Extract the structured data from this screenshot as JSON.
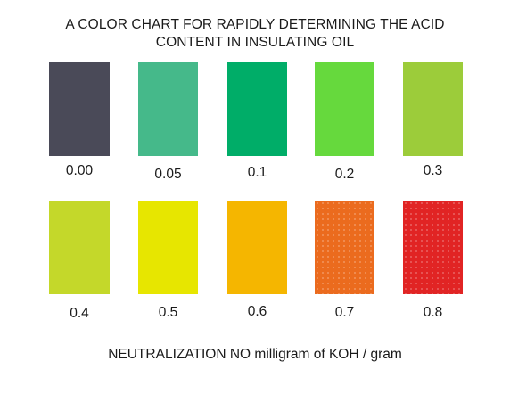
{
  "chart_data": {
    "type": "color-chart",
    "title": [
      "A COLOR CHART FOR RAPIDLY DETERMINING THE ACID",
      "CONTENT IN INSULATING OIL"
    ],
    "xlabel": "NEUTRALIZATION NO milligram of KOH / gram",
    "values": [
      "0.00",
      "0.05",
      "0.1",
      "0.2",
      "0.3",
      "0.4",
      "0.5",
      "0.6",
      "0.7",
      "0.8"
    ],
    "colors": [
      "#4a4a58",
      "#45b98a",
      "#00ad68",
      "#66d93d",
      "#9ccc3a",
      "#c4d82a",
      "#e7e600",
      "#f5b600",
      "#eb6b1e",
      "#e12424"
    ],
    "textured": [
      false,
      false,
      false,
      false,
      false,
      false,
      false,
      false,
      true,
      true
    ],
    "grid": false
  }
}
